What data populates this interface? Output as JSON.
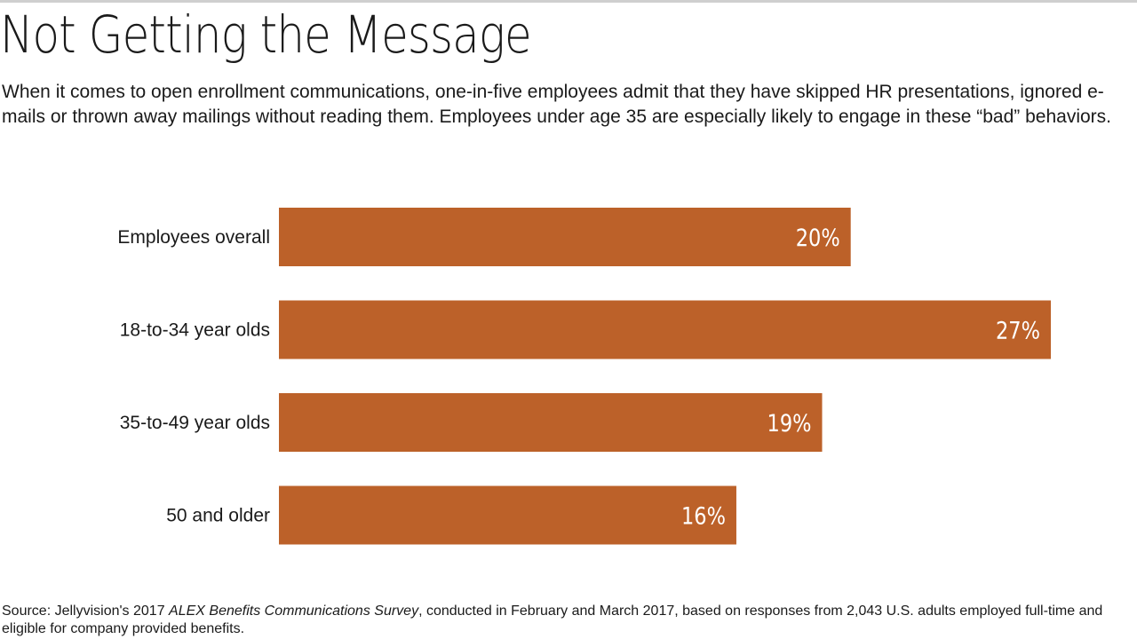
{
  "title": "Not Getting the Message",
  "subtitle": "When it comes to open enrollment communications, one-in-five employees admit that they have skipped HR presentations, ignored e-mails or thrown away mailings without reading them. Employees under age 35 are especially likely to engage in these “bad” behaviors.",
  "source": {
    "prefix": "Source: Jellyvision's 2017 ",
    "survey_name": "ALEX Benefits Communications Survey",
    "suffix": ", conducted in February and March 2017, based on responses from 2,043 U.S. adults employed full-time and eligible for company provided benefits."
  },
  "colors": {
    "bar": "#bc6129",
    "value_text": "#ffffff"
  },
  "chart_data": {
    "type": "bar",
    "orientation": "horizontal",
    "categories": [
      "Employees overall",
      "18-to-34 year olds",
      "35-to-49 year olds",
      "50 and older"
    ],
    "values": [
      20,
      27,
      19,
      16
    ],
    "value_labels": [
      "20%",
      "27%",
      "19%",
      "16%"
    ],
    "xlim": [
      0,
      27
    ],
    "grid": false,
    "legend": "none"
  }
}
